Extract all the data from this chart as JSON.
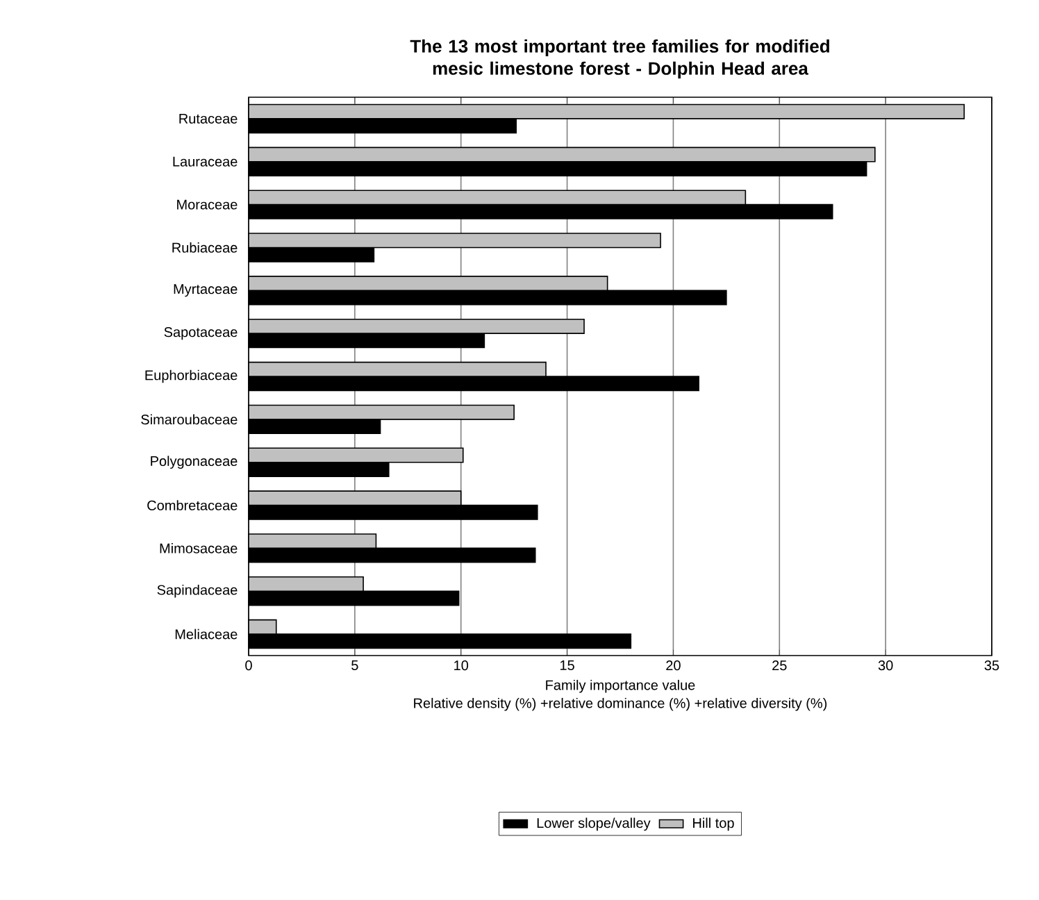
{
  "chart_data": {
    "type": "bar",
    "orientation": "horizontal",
    "title": "The 13 most important tree families for modified mesic limestone forest - Dolphin Head area",
    "xlabel": "Family importance value",
    "annotations": [
      "Relative density (%) +relative dominance (%) +relative diversity (%)"
    ],
    "categories": [
      "Rutaceae",
      "Lauraceae",
      "Moraceae",
      "Rubiaceae",
      "Myrtaceae",
      "Sapotaceae",
      "Euphorbiaceae",
      "Simaroubaceae",
      "Polygonaceae",
      "Combretaceae",
      "Mimosaceae",
      "Sapindaceae",
      "Meliaceae"
    ],
    "series": [
      {
        "name": "Lower slope/valley",
        "color": "#000000",
        "values": [
          12.6,
          29.1,
          27.5,
          5.9,
          22.5,
          11.1,
          21.2,
          6.2,
          6.6,
          13.6,
          13.5,
          9.9,
          18.0
        ]
      },
      {
        "name": "Hill top",
        "color": "#c0c0c0",
        "values": [
          33.7,
          29.5,
          23.4,
          19.4,
          16.9,
          15.8,
          14.0,
          12.5,
          10.1,
          10.0,
          6.0,
          5.4,
          1.3
        ]
      }
    ],
    "xlim": [
      0,
      35
    ],
    "xticks": [
      0,
      5,
      10,
      15,
      20,
      25,
      30,
      35
    ],
    "grid": "x",
    "legend": "bottom"
  }
}
